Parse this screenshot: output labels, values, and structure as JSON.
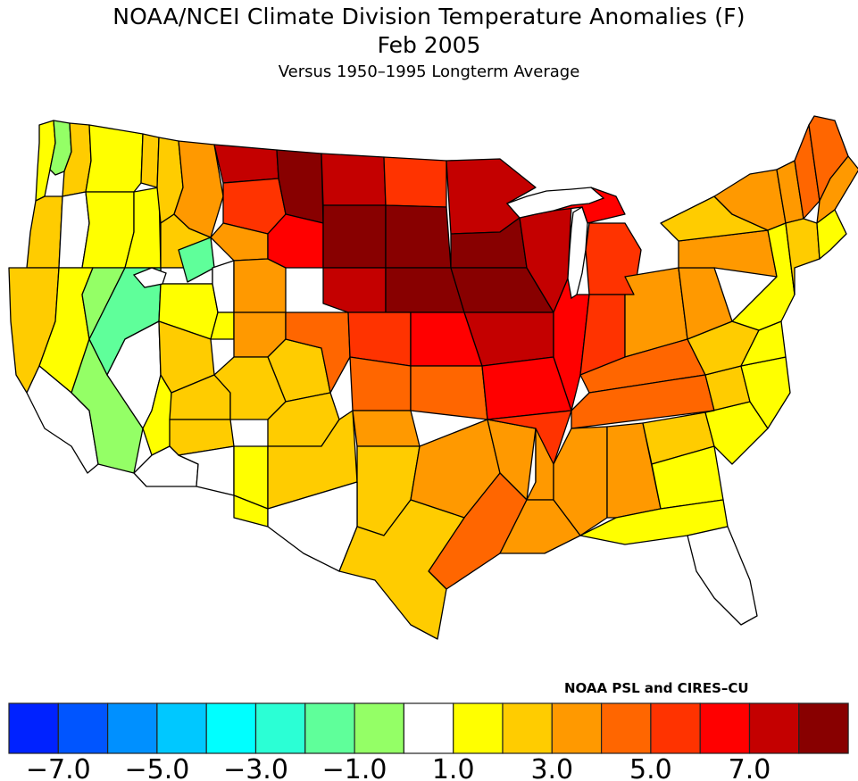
{
  "header": {
    "title": "NOAA/NCEI Climate Division Temperature Anomalies (F)",
    "date": "Feb 2005",
    "subtitle": "Versus 1950–1995 Longterm Average"
  },
  "credit": "NOAA PSL and CIRES–CU",
  "legend": {
    "colors": [
      "#0022ff",
      "#0055ff",
      "#0090ff",
      "#00c8ff",
      "#00ffff",
      "#2bffd5",
      "#5fff9a",
      "#94ff66",
      "#ffffff",
      "#ffff00",
      "#ffcc00",
      "#ff9900",
      "#ff6600",
      "#ff3300",
      "#ff0000",
      "#c40000",
      "#880000"
    ],
    "tick_labels": [
      "−7.0",
      "−5.0",
      "−3.0",
      "−1.0",
      "1.0",
      "3.0",
      "5.0",
      "7.0"
    ]
  },
  "map": {
    "regions": [
      {
        "name": "wa-coast",
        "cls": 9
      },
      {
        "name": "wa-puget",
        "cls": 7
      },
      {
        "name": "wa-cascades",
        "cls": 10
      },
      {
        "name": "wa-east",
        "cls": 9
      },
      {
        "name": "wa-ne",
        "cls": 10
      },
      {
        "name": "or-coast",
        "cls": 10
      },
      {
        "name": "or-willamette",
        "cls": 8
      },
      {
        "name": "or-central",
        "cls": 9
      },
      {
        "name": "or-east",
        "cls": 9
      },
      {
        "name": "id-north",
        "cls": 10
      },
      {
        "name": "id-central",
        "cls": 10
      },
      {
        "name": "id-south",
        "cls": 8
      },
      {
        "name": "id-se",
        "cls": 6
      },
      {
        "name": "ca-north-coast",
        "cls": 10
      },
      {
        "name": "ca-sac",
        "cls": 9
      },
      {
        "name": "ca-sierra",
        "cls": 7
      },
      {
        "name": "ca-south",
        "cls": 8
      },
      {
        "name": "ca-se-desert",
        "cls": 7
      },
      {
        "name": "nv-north",
        "cls": 6
      },
      {
        "name": "nv-central",
        "cls": 8
      },
      {
        "name": "nv-south",
        "cls": 9
      },
      {
        "name": "ut-north",
        "cls": 9
      },
      {
        "name": "ut-central",
        "cls": 10
      },
      {
        "name": "ut-south",
        "cls": 10
      },
      {
        "name": "az-north",
        "cls": 10
      },
      {
        "name": "az-central",
        "cls": 8
      },
      {
        "name": "az-south",
        "cls": 8
      },
      {
        "name": "az-se",
        "cls": 9
      },
      {
        "name": "mt-west",
        "cls": 11
      },
      {
        "name": "mt-north",
        "cls": 15
      },
      {
        "name": "mt-central",
        "cls": 13
      },
      {
        "name": "mt-south",
        "cls": 11
      },
      {
        "name": "mt-east",
        "cls": 16
      },
      {
        "name": "wy-west",
        "cls": 8
      },
      {
        "name": "wy-central",
        "cls": 11
      },
      {
        "name": "wy-east",
        "cls": 14
      },
      {
        "name": "wy-sw",
        "cls": 9
      },
      {
        "name": "co-west",
        "cls": 11
      },
      {
        "name": "co-mtn",
        "cls": 10
      },
      {
        "name": "co-east",
        "cls": 12
      },
      {
        "name": "nm-north",
        "cls": 10
      },
      {
        "name": "nm-central",
        "cls": 10
      },
      {
        "name": "nm-south",
        "cls": 10
      },
      {
        "name": "nm-sw",
        "cls": 9
      },
      {
        "name": "nd-west",
        "cls": 15
      },
      {
        "name": "nd-east",
        "cls": 13
      },
      {
        "name": "sd-west",
        "cls": 16
      },
      {
        "name": "sd-east",
        "cls": 16
      },
      {
        "name": "ne-west",
        "cls": 15
      },
      {
        "name": "ne-east",
        "cls": 16
      },
      {
        "name": "ks-west",
        "cls": 13
      },
      {
        "name": "ks-east",
        "cls": 14
      },
      {
        "name": "ok-west",
        "cls": 12
      },
      {
        "name": "ok-east",
        "cls": 12
      },
      {
        "name": "tx-panhandle",
        "cls": 11
      },
      {
        "name": "tx-west",
        "cls": 10
      },
      {
        "name": "tx-bigbend",
        "cls": 8
      },
      {
        "name": "tx-central",
        "cls": 11
      },
      {
        "name": "tx-east",
        "cls": 11
      },
      {
        "name": "tx-gulf",
        "cls": 12
      },
      {
        "name": "tx-south",
        "cls": 10
      },
      {
        "name": "mn-north",
        "cls": 15
      },
      {
        "name": "mn-south",
        "cls": 16
      },
      {
        "name": "ia",
        "cls": 16
      },
      {
        "name": "mo-north",
        "cls": 15
      },
      {
        "name": "mo-south",
        "cls": 14
      },
      {
        "name": "ar",
        "cls": 13
      },
      {
        "name": "la-north",
        "cls": 11
      },
      {
        "name": "la-south",
        "cls": 11
      },
      {
        "name": "wi",
        "cls": 15
      },
      {
        "name": "mi-up",
        "cls": 14
      },
      {
        "name": "mi-lower",
        "cls": 13
      },
      {
        "name": "il",
        "cls": 14
      },
      {
        "name": "in",
        "cls": 13
      },
      {
        "name": "oh",
        "cls": 11
      },
      {
        "name": "ky",
        "cls": 12
      },
      {
        "name": "tn",
        "cls": 12
      },
      {
        "name": "ms",
        "cls": 11
      },
      {
        "name": "al",
        "cls": 11
      },
      {
        "name": "ga-north",
        "cls": 10
      },
      {
        "name": "ga-south",
        "cls": 9
      },
      {
        "name": "fl-north",
        "cls": 9
      },
      {
        "name": "fl-south",
        "cls": 8
      },
      {
        "name": "sc",
        "cls": 9
      },
      {
        "name": "nc-west",
        "cls": 10
      },
      {
        "name": "nc-east",
        "cls": 9
      },
      {
        "name": "va",
        "cls": 10
      },
      {
        "name": "va-east",
        "cls": 9
      },
      {
        "name": "wv",
        "cls": 11
      },
      {
        "name": "pa",
        "cls": 11
      },
      {
        "name": "ny-west",
        "cls": 10
      },
      {
        "name": "ny-east",
        "cls": 11
      },
      {
        "name": "nj-md-de",
        "cls": 9
      },
      {
        "name": "vt-nh",
        "cls": 11
      },
      {
        "name": "nh-north",
        "cls": 12
      },
      {
        "name": "me-north",
        "cls": 12
      },
      {
        "name": "me-coast",
        "cls": 11
      },
      {
        "name": "ma-ct-ri",
        "cls": 10
      },
      {
        "name": "ma-east",
        "cls": 9
      }
    ]
  }
}
